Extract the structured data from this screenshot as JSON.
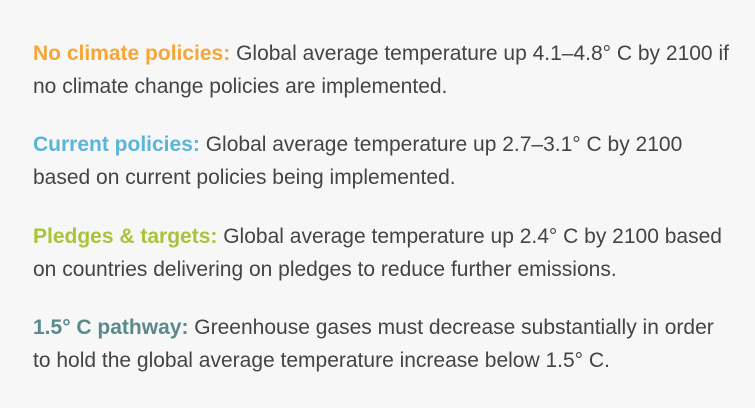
{
  "entries": [
    {
      "term": "No climate policies:",
      "text": " Global average temperature up 4.1–4.8° C by 2100 if no climate change policies are implemented.",
      "color": "#f7a535"
    },
    {
      "term": "Current policies:",
      "text": " Global average temperature up 2.7–3.1° C by 2100 based on current policies being implemented.",
      "color": "#5bb5d9"
    },
    {
      "term": "Pledges & targets:",
      "text": " Global average temperature up 2.4° C by 2100 based on countries delivering on pledges to reduce further emissions.",
      "color": "#a8c43a"
    },
    {
      "term": "1.5° C pathway:",
      "text": " Greenhouse gases must decrease substantially in order to hold the global average temperature increase below 1.5° C.",
      "color": "#5a8a8c"
    }
  ]
}
